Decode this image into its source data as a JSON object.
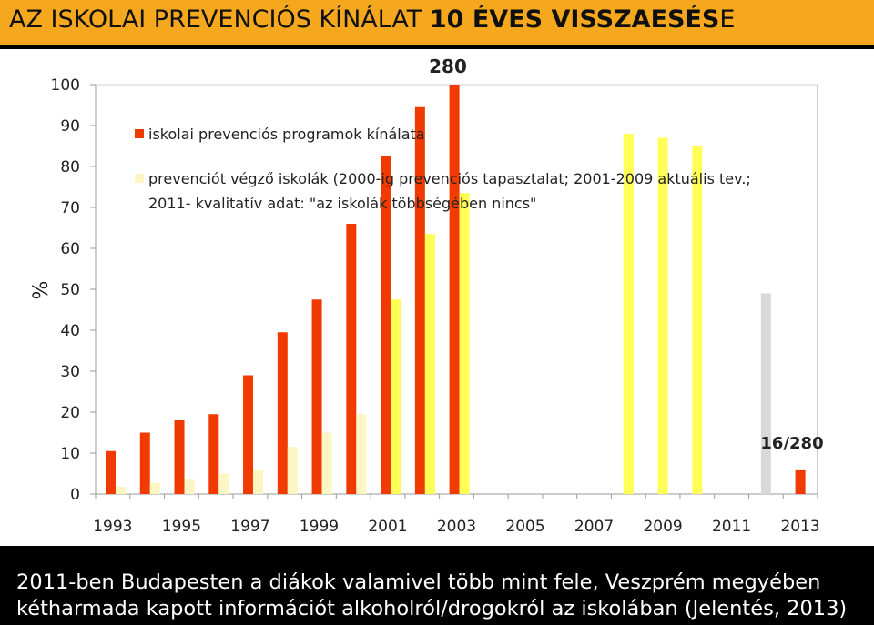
{
  "title": {
    "part1": "AZ ISKOLAI PREVENCIÓS KÍNÁLAT ",
    "part2": "10 ÉVES VISSZAESÉS",
    "part3": "E"
  },
  "colors": {
    "title_bar": "#F5A81E",
    "background": "#000000",
    "plot_background": "#FFFFFF",
    "series_offered": "#F03A00",
    "series_doing_early": "#FDF6C4",
    "series_doing_mid": "#FFFF55",
    "series_doing_2011": "#D9D9D9"
  },
  "chart_data": {
    "type": "bar",
    "ylabel": "%",
    "xlabel": "",
    "ylim": [
      0,
      100
    ],
    "yticks": [
      0,
      10,
      20,
      30,
      40,
      50,
      60,
      70,
      80,
      90,
      100
    ],
    "x_tick_labels": [
      "1993",
      "1995",
      "1997",
      "1999",
      "2001",
      "2003",
      "2005",
      "2007",
      "2009",
      "2011",
      "2013"
    ],
    "categories": [
      "1993",
      "1994",
      "1995",
      "1996",
      "1997",
      "1998",
      "1999",
      "2000",
      "2001",
      "2002",
      "2003",
      "2004",
      "2005",
      "2006",
      "2007",
      "2008",
      "2009",
      "2010",
      "2011",
      "2012",
      "2013"
    ],
    "grid": false,
    "legend_position": "top-left",
    "series": [
      {
        "name": "iskolai prevenciós programok kínálata",
        "values": [
          10.5,
          15,
          18,
          19.5,
          29,
          39.5,
          47.5,
          66,
          82.5,
          94.5,
          100,
          null,
          null,
          null,
          null,
          null,
          null,
          null,
          null,
          null,
          5.8
        ]
      },
      {
        "name": "prevenciót végző iskolák (2000-ig prevenciós tapasztalat; 2001-2009 aktuális tev.; 2011- kvalitatív adat: \"az iskolák többségében nincs\"",
        "values": [
          1.8,
          2.7,
          3.5,
          5,
          5.8,
          11.5,
          15,
          19.5,
          47.5,
          63.5,
          73.5,
          null,
          null,
          null,
          null,
          88,
          87,
          85,
          null,
          49,
          null
        ]
      }
    ],
    "annotations": [
      "280",
      "16/280"
    ]
  },
  "legend": {
    "item1": "iskolai prevenciós programok kínálata",
    "item2_line1": "prevenciót végző iskolák (2000-ig prevenciós tapasztalat; 2001-2009 aktuális tev.;",
    "item2_line2": "2011- kvalitatív adat: \"az iskolák többségében nincs\""
  },
  "caption": {
    "line1": "2011-ben Budapesten a diákok valamivel több mint fele, Veszprém megyében",
    "line2": "kétharmada kapott információt alkoholról/drogokról az iskolában (Jelentés, 2013)"
  }
}
